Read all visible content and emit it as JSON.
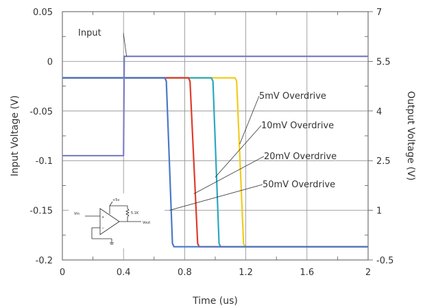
{
  "chart_data": {
    "type": "line",
    "xlabel": "Time (us)",
    "ylabel_left": "Input Voltage (V)",
    "ylabel_right": "Output Voltage (V)",
    "xlim": [
      0,
      2
    ],
    "ylim_left": [
      -0.2,
      0.05
    ],
    "ylim_right": [
      -0.5,
      7
    ],
    "x_ticks": [
      "0",
      "0.4",
      "0.8",
      "1.2",
      "1.6",
      "2"
    ],
    "y_ticks_left": [
      "0.05",
      "0",
      "-0.05",
      "-0.1",
      "-0.15",
      "-0.2"
    ],
    "y_ticks_right": [
      "7",
      "5.5",
      "4",
      "2.5",
      "1",
      "-0.5"
    ],
    "grid": true,
    "series": [
      {
        "name": "Input",
        "axis": "left",
        "color": "#7b7fc4",
        "points": [
          [
            0,
            -0.095
          ],
          [
            0.4,
            -0.095
          ],
          [
            0.405,
            0.005
          ],
          [
            2,
            0.005
          ]
        ]
      },
      {
        "name": "50mV Overdrive",
        "axis": "right",
        "color": "#4a78c8",
        "points": [
          [
            0,
            5.0
          ],
          [
            0.67,
            5.0
          ],
          [
            0.68,
            4.9
          ],
          [
            0.72,
            0.0
          ],
          [
            0.73,
            -0.1
          ],
          [
            2,
            -0.1
          ]
        ]
      },
      {
        "name": "20mV Overdrive",
        "axis": "right",
        "color": "#e03a2a",
        "points": [
          [
            0,
            5.0
          ],
          [
            0.825,
            5.0
          ],
          [
            0.835,
            4.9
          ],
          [
            0.885,
            0.0
          ],
          [
            0.895,
            -0.1
          ],
          [
            2,
            -0.1
          ]
        ]
      },
      {
        "name": "10mV Overdrive",
        "axis": "right",
        "color": "#2aa8c0",
        "points": [
          [
            0,
            5.0
          ],
          [
            0.975,
            5.0
          ],
          [
            0.985,
            4.9
          ],
          [
            1.025,
            0.0
          ],
          [
            1.035,
            -0.1
          ],
          [
            2,
            -0.1
          ]
        ]
      },
      {
        "name": "5mV Overdrive",
        "axis": "right",
        "color": "#f2cc1a",
        "points": [
          [
            0,
            5.0
          ],
          [
            1.13,
            5.0
          ],
          [
            1.14,
            4.9
          ],
          [
            1.185,
            0.0
          ],
          [
            1.195,
            -0.1
          ],
          [
            2,
            -0.1
          ]
        ]
      }
    ],
    "annotations": [
      {
        "text": "Input",
        "series": "Input",
        "x": 0.42,
        "y": 0.005
      },
      {
        "text": "5mV Overdrive",
        "series": "5mV Overdrive",
        "x": 1.16,
        "y": 3.0
      },
      {
        "text": "10mV Overdrive",
        "series": "10mV Overdrive",
        "x": 1.0,
        "y": 2.0
      },
      {
        "text": "20mV Overdrive",
        "series": "20mV Overdrive",
        "x": 0.86,
        "y": 1.5
      },
      {
        "text": "50mV Overdrive",
        "series": "50mV Overdrive",
        "x": 0.7,
        "y": 1.0
      }
    ],
    "inset_schematic": {
      "labels": [
        "+5v",
        "Vin",
        "5.1K",
        "Vout"
      ]
    }
  }
}
